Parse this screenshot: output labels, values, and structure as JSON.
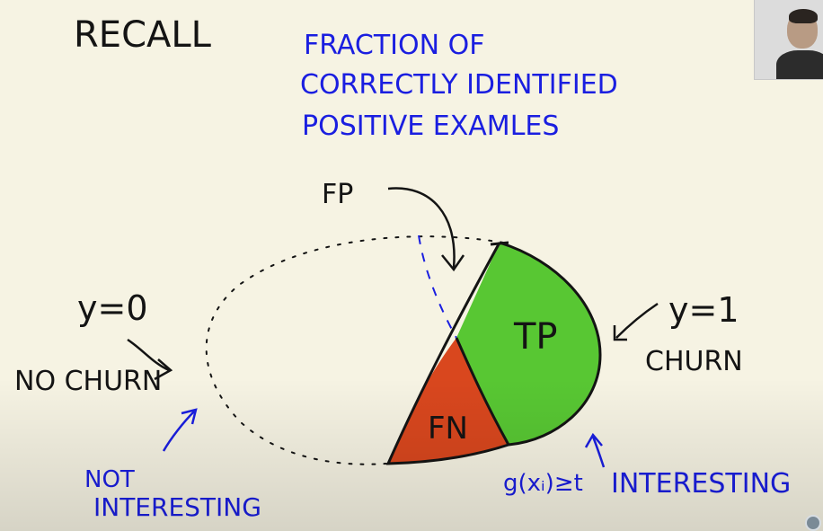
{
  "title": "RECALL",
  "definition": [
    "FRACTION OF",
    "CORRECTLY IDENTIFIED",
    "POSITIVE EXAMLES"
  ],
  "labels": {
    "fp": "FP",
    "tp": "TP",
    "fn": "FN",
    "y0": "y=0",
    "no_churn": "NO CHURN",
    "y1": "y=1",
    "churn": "CHURN",
    "not_interesting_1": "NOT",
    "not_interesting_2": "INTERESTING",
    "threshold": "g(xᵢ)≥t",
    "interesting": "INTERESTING"
  },
  "colors": {
    "background": "#f6f3e3",
    "black_ink": "#141414",
    "blue_ink": "#1a1ee0",
    "tp_fill": "#58c733",
    "fn_fill": "#d9471e"
  }
}
